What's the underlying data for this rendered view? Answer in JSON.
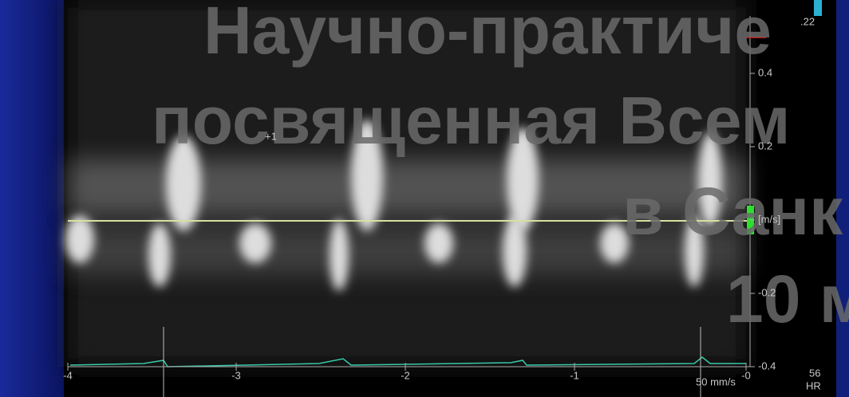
{
  "watermark": {
    "lines": [
      "Научно-практиче",
      "посвященная Всем",
      "в Санк",
      "10 м"
    ]
  },
  "scale_marker": ".22",
  "cursor": "+1",
  "velocity_axis": {
    "labels": [
      "0.4",
      "0.2",
      "[m/s]",
      "-0.2",
      "-0.4"
    ]
  },
  "time_axis": {
    "labels": [
      "-4",
      "-3",
      "-2",
      "-1",
      "-0"
    ]
  },
  "sweep_speed": "50 mm/s",
  "heart_rate": {
    "value": "56",
    "label": "HR"
  }
}
